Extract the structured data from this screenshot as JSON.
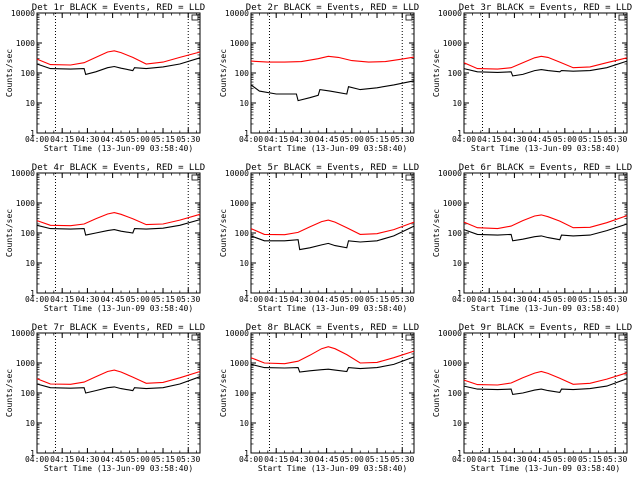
{
  "colors": {
    "events": "#000000",
    "lld": "#ff0000",
    "axes": "#000000",
    "background": "#ffffff"
  },
  "common": {
    "xlabel": "Start Time (13-Jun-09 03:58:40)",
    "ylabel": "Counts/sec",
    "x_ticks": [
      "04:00",
      "04:15",
      "04:30",
      "04:45",
      "05:00",
      "05:15",
      "05:30"
    ],
    "y_ticks": [
      "1",
      "10",
      "100",
      "1000",
      "10000"
    ],
    "ylim": [
      1,
      10000
    ],
    "xlim": [
      "04:00",
      "05:37"
    ],
    "yscale": "log",
    "vlines": [
      "04:11",
      "05:30"
    ]
  },
  "chart_data": [
    {
      "type": "line",
      "title": "Det 1r BLACK = Events, RED = LLD",
      "series": [
        {
          "name": "Events",
          "x": [
            "04:00",
            "04:08",
            "04:20",
            "04:28",
            "04:29",
            "04:35",
            "04:42",
            "04:46",
            "04:50",
            "04:57",
            "04:58",
            "05:05",
            "05:15",
            "05:25",
            "05:37"
          ],
          "values": [
            200,
            140,
            135,
            140,
            90,
            110,
            150,
            165,
            145,
            120,
            150,
            140,
            160,
            200,
            320
          ]
        },
        {
          "name": "LLD",
          "x": [
            "04:00",
            "04:08",
            "04:20",
            "04:28",
            "04:35",
            "04:42",
            "04:46",
            "04:50",
            "04:57",
            "05:05",
            "05:15",
            "05:25",
            "05:37"
          ],
          "values": [
            290,
            190,
            185,
            220,
            330,
            500,
            550,
            480,
            330,
            200,
            230,
            330,
            500
          ]
        }
      ]
    },
    {
      "type": "line",
      "title": "Det 2r BLACK = Events, RED = LLD",
      "series": [
        {
          "name": "Events",
          "x": [
            "04:00",
            "04:05",
            "04:15",
            "04:27",
            "04:28",
            "04:35",
            "04:40",
            "04:41",
            "04:47",
            "04:57",
            "04:58",
            "05:05",
            "05:15",
            "05:25",
            "05:37"
          ],
          "values": [
            40,
            25,
            20,
            20,
            12,
            15,
            18,
            28,
            25,
            20,
            35,
            28,
            32,
            40,
            55
          ]
        },
        {
          "name": "LLD",
          "x": [
            "04:00",
            "04:10",
            "04:20",
            "04:30",
            "04:40",
            "04:46",
            "04:52",
            "05:00",
            "05:10",
            "05:20",
            "05:30",
            "05:37"
          ],
          "values": [
            250,
            230,
            230,
            240,
            300,
            360,
            330,
            260,
            230,
            240,
            290,
            340
          ]
        }
      ]
    },
    {
      "type": "line",
      "title": "Det 3r BLACK = Events, RED = LLD",
      "series": [
        {
          "name": "Events",
          "x": [
            "04:00",
            "04:08",
            "04:20",
            "04:28",
            "04:29",
            "04:35",
            "04:42",
            "04:46",
            "04:50",
            "04:57",
            "04:58",
            "05:05",
            "05:15",
            "05:25",
            "05:37"
          ],
          "values": [
            140,
            110,
            105,
            110,
            80,
            90,
            120,
            130,
            120,
            110,
            120,
            115,
            120,
            150,
            250
          ]
        },
        {
          "name": "LLD",
          "x": [
            "04:00",
            "04:08",
            "04:20",
            "04:28",
            "04:35",
            "04:42",
            "04:46",
            "04:50",
            "04:57",
            "05:05",
            "05:15",
            "05:25",
            "05:37"
          ],
          "values": [
            220,
            140,
            135,
            150,
            220,
            320,
            360,
            330,
            230,
            150,
            160,
            220,
            320
          ]
        }
      ]
    },
    {
      "type": "line",
      "title": "Det 4r BLACK = Events, RED = LLD",
      "series": [
        {
          "name": "Events",
          "x": [
            "04:00",
            "04:08",
            "04:20",
            "04:28",
            "04:29",
            "04:35",
            "04:42",
            "04:46",
            "04:50",
            "04:57",
            "04:58",
            "05:05",
            "05:15",
            "05:25",
            "05:37"
          ],
          "values": [
            180,
            140,
            135,
            140,
            85,
            100,
            120,
            130,
            115,
            100,
            140,
            135,
            145,
            180,
            280
          ]
        },
        {
          "name": "LLD",
          "x": [
            "04:00",
            "04:08",
            "04:20",
            "04:28",
            "04:35",
            "04:42",
            "04:46",
            "04:50",
            "04:57",
            "05:05",
            "05:15",
            "05:25",
            "05:37"
          ],
          "values": [
            260,
            180,
            175,
            200,
            300,
            430,
            480,
            420,
            300,
            190,
            200,
            270,
            420
          ]
        }
      ]
    },
    {
      "type": "line",
      "title": "Det 5r BLACK = Events, RED = LLD",
      "series": [
        {
          "name": "Events",
          "x": [
            "04:00",
            "04:08",
            "04:20",
            "04:28",
            "04:29",
            "04:35",
            "04:42",
            "04:46",
            "04:50",
            "04:57",
            "04:58",
            "05:05",
            "05:15",
            "05:25",
            "05:37"
          ],
          "values": [
            80,
            55,
            55,
            60,
            28,
            32,
            40,
            45,
            38,
            32,
            55,
            50,
            55,
            80,
            170
          ]
        },
        {
          "name": "LLD",
          "x": [
            "04:00",
            "04:08",
            "04:20",
            "04:28",
            "04:35",
            "04:42",
            "04:46",
            "04:50",
            "04:57",
            "05:05",
            "05:15",
            "05:25",
            "05:37"
          ],
          "values": [
            140,
            90,
            88,
            105,
            160,
            240,
            270,
            230,
            150,
            90,
            95,
            130,
            230
          ]
        }
      ]
    },
    {
      "type": "line",
      "title": "Det 6r BLACK = Events, RED = LLD",
      "series": [
        {
          "name": "Events",
          "x": [
            "04:00",
            "04:08",
            "04:20",
            "04:28",
            "04:29",
            "04:35",
            "04:42",
            "04:46",
            "04:50",
            "04:57",
            "04:58",
            "05:05",
            "05:15",
            "05:25",
            "05:37"
          ],
          "values": [
            130,
            90,
            85,
            90,
            55,
            62,
            75,
            80,
            70,
            60,
            85,
            80,
            85,
            120,
            200
          ]
        },
        {
          "name": "LLD",
          "x": [
            "04:00",
            "04:08",
            "04:20",
            "04:28",
            "04:35",
            "04:42",
            "04:46",
            "04:50",
            "04:57",
            "05:05",
            "05:15",
            "05:25",
            "05:37"
          ],
          "values": [
            230,
            150,
            140,
            170,
            260,
            370,
            400,
            350,
            250,
            150,
            155,
            220,
            380
          ]
        }
      ]
    },
    {
      "type": "line",
      "title": "Det 7r BLACK = Events, RED = LLD",
      "series": [
        {
          "name": "Events",
          "x": [
            "04:00",
            "04:08",
            "04:20",
            "04:28",
            "04:29",
            "04:35",
            "04:42",
            "04:46",
            "04:50",
            "04:57",
            "04:58",
            "05:05",
            "05:15",
            "05:25",
            "05:37"
          ],
          "values": [
            200,
            150,
            145,
            150,
            100,
            120,
            150,
            160,
            140,
            120,
            150,
            140,
            150,
            200,
            350
          ]
        },
        {
          "name": "LLD",
          "x": [
            "04:00",
            "04:08",
            "04:20",
            "04:28",
            "04:35",
            "04:42",
            "04:46",
            "04:50",
            "04:57",
            "05:05",
            "05:15",
            "05:25",
            "05:37"
          ],
          "values": [
            300,
            200,
            195,
            230,
            350,
            520,
            580,
            500,
            340,
            210,
            225,
            320,
            520
          ]
        }
      ]
    },
    {
      "type": "line",
      "title": "Det 8r BLACK = Events, RED = LLD",
      "series": [
        {
          "name": "Events",
          "x": [
            "04:00",
            "04:08",
            "04:20",
            "04:28",
            "04:29",
            "04:35",
            "04:42",
            "04:46",
            "04:50",
            "04:57",
            "04:58",
            "05:05",
            "05:15",
            "05:25",
            "05:37"
          ],
          "values": [
            900,
            700,
            680,
            700,
            500,
            550,
            600,
            620,
            580,
            520,
            700,
            650,
            700,
            900,
            1600
          ]
        },
        {
          "name": "LLD",
          "x": [
            "04:00",
            "04:08",
            "04:20",
            "04:28",
            "04:35",
            "04:42",
            "04:46",
            "04:50",
            "04:57",
            "05:05",
            "05:15",
            "05:25",
            "05:37"
          ],
          "values": [
            1500,
            1000,
            950,
            1150,
            1800,
            3000,
            3500,
            3000,
            1900,
            1000,
            1050,
            1500,
            2500
          ]
        }
      ]
    },
    {
      "type": "line",
      "title": "Det 9r BLACK = Events, RED = LLD",
      "series": [
        {
          "name": "Events",
          "x": [
            "04:00",
            "04:08",
            "04:20",
            "04:28",
            "04:29",
            "04:35",
            "04:42",
            "04:46",
            "04:50",
            "04:57",
            "04:58",
            "05:05",
            "05:15",
            "05:25",
            "05:37"
          ],
          "values": [
            170,
            135,
            130,
            135,
            90,
            100,
            125,
            135,
            120,
            105,
            135,
            130,
            140,
            170,
            300
          ]
        },
        {
          "name": "LLD",
          "x": [
            "04:00",
            "04:08",
            "04:20",
            "04:28",
            "04:35",
            "04:42",
            "04:46",
            "04:50",
            "04:57",
            "05:05",
            "05:15",
            "05:25",
            "05:37"
          ],
          "values": [
            270,
            190,
            185,
            215,
            320,
            460,
            520,
            450,
            310,
            195,
            210,
            290,
            470
          ]
        }
      ]
    }
  ]
}
